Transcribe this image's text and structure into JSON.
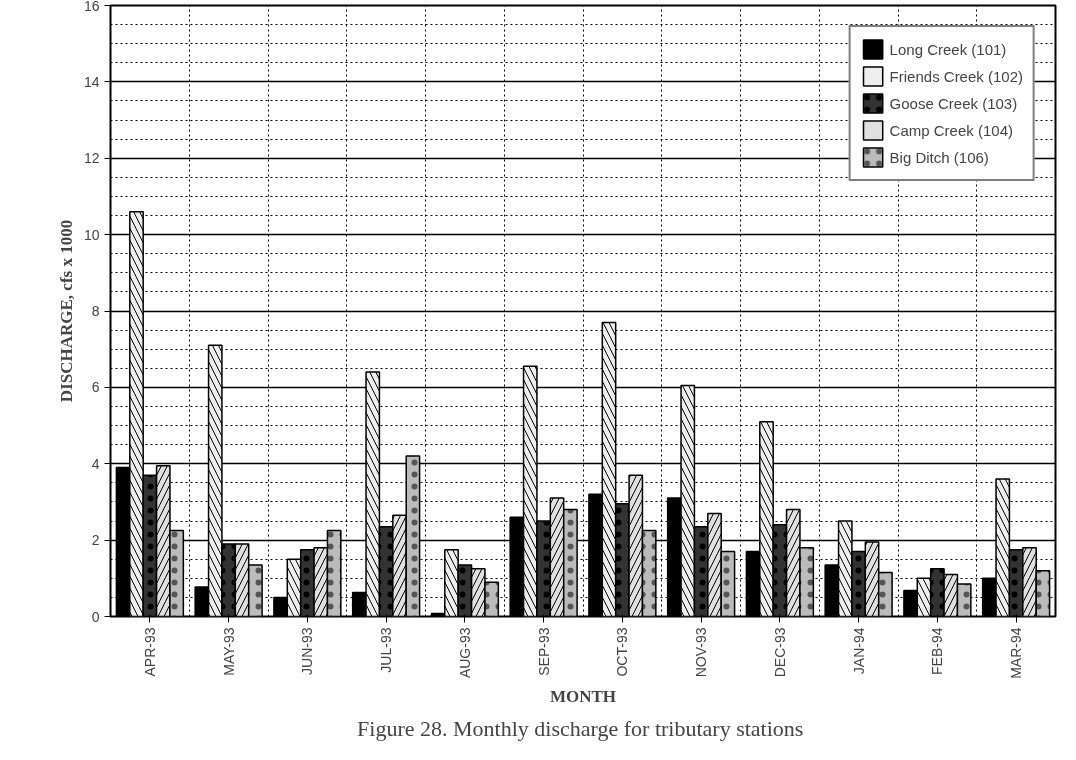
{
  "chart_data": {
    "type": "bar",
    "xlabel": "MONTH",
    "ylabel": "DISCHARGE, cfs x 1000",
    "annotations": [
      "Figure 28.  Monthly discharge for tributary stations"
    ],
    "categories": [
      "APR-93",
      "MAY-93",
      "JUN-93",
      "JUL-93",
      "AUG-93",
      "SEP-93",
      "OCT-93",
      "NOV-93",
      "DEC-93",
      "JAN-94",
      "FEB-94",
      "MAR-94"
    ],
    "series": [
      {
        "name": "Long Creek (101)",
        "color": "#000000",
        "values": [
          3.9,
          0.77,
          0.5,
          0.63,
          0.08,
          2.6,
          3.2,
          3.1,
          1.7,
          1.35,
          0.68,
          1.0
        ]
      },
      {
        "name": "Friends Creek (102)",
        "color": "#eeeeee",
        "values": [
          10.6,
          7.1,
          1.5,
          6.4,
          1.75,
          6.55,
          7.7,
          6.05,
          5.1,
          2.5,
          1.0,
          3.6
        ]
      },
      {
        "name": "Goose Creek (103)",
        "color": "#333333",
        "values": [
          3.7,
          1.9,
          1.75,
          2.35,
          1.35,
          2.5,
          2.95,
          2.35,
          2.4,
          1.7,
          1.25,
          1.75
        ]
      },
      {
        "name": "Camp Creek (104)",
        "color": "#e0e0e0",
        "values": [
          3.95,
          1.9,
          1.8,
          2.65,
          1.25,
          3.1,
          3.7,
          2.7,
          2.8,
          1.95,
          1.1,
          1.8
        ]
      },
      {
        "name": "Big Ditch (106)",
        "color": "#bbbbbb",
        "values": [
          2.25,
          1.35,
          2.25,
          4.2,
          0.9,
          2.8,
          2.25,
          1.7,
          1.8,
          1.15,
          0.85,
          1.2
        ]
      }
    ],
    "ylim": [
      0,
      16
    ],
    "yticks": [
      0,
      2,
      4,
      6,
      8,
      10,
      12,
      14,
      16
    ],
    "grid": true,
    "legend": "top right"
  }
}
